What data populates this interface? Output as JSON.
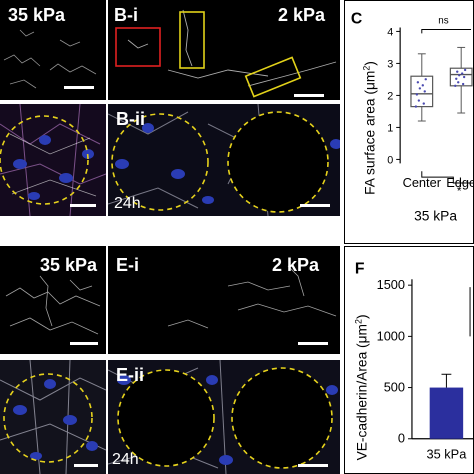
{
  "figure": {
    "top_left_stiffness": "35 kPa",
    "b_i_label": "B-i",
    "b_i_stiffness": "2 kPa",
    "b_ii_label": "B-ii",
    "b_ii_time": "24h",
    "e_top_left_stiffness": "35 kPa",
    "e_i_label": "E-i",
    "e_i_stiffness": "2 kPa",
    "e_ii_label": "E-ii",
    "e_ii_time": "24h"
  },
  "panel_c": {
    "letter": "C",
    "ylabel_prefix": "FA surface area (μm",
    "ylabel_sup": "2",
    "ylabel_suffix": ")",
    "ns_label": "ns",
    "star_label": "*",
    "bottom_label": "35 kPa"
  },
  "panel_f": {
    "letter": "F",
    "ylabel_prefix": "VE-cadherin/Area (μm",
    "ylabel_sup": "2",
    "ylabel_suffix": ")"
  },
  "chart_data": [
    {
      "type": "box",
      "ylabel": "FA surface area (μm²)",
      "categories": [
        "Center",
        "Edge"
      ],
      "ylim": [
        0,
        4
      ],
      "yticks": [
        0,
        1,
        2,
        3,
        4
      ],
      "boxes": [
        {
          "category": "Center",
          "whisker_low": 1.2,
          "q1": 1.65,
          "median": 2.05,
          "q3": 2.6,
          "whisker_high": 3.3
        },
        {
          "category": "Edge",
          "whisker_low": 1.45,
          "q1": 2.3,
          "median": 2.65,
          "q3": 2.85,
          "whisker_high": 3.5
        }
      ],
      "annotations": [
        "ns",
        "*"
      ],
      "group_label": "35 kPa",
      "colors": {
        "box": "#555555",
        "points": "#4a4ab0"
      }
    },
    {
      "type": "bar",
      "ylabel": "VE-cadherin/Area (μm²)",
      "categories": [
        "35 kPa"
      ],
      "values": [
        500
      ],
      "error": [
        130
      ],
      "ylim": [
        0,
        1500
      ],
      "yticks": [
        0,
        500,
        1000,
        1500
      ],
      "colors": {
        "bar": "#2b2f9e"
      }
    }
  ]
}
